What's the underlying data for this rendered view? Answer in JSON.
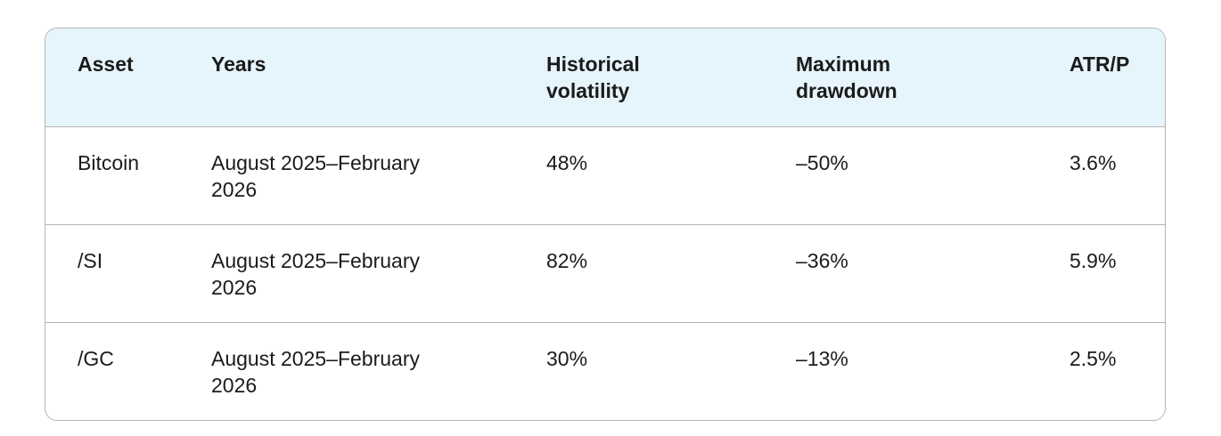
{
  "table": {
    "header": [
      "Asset",
      "Years",
      "Historical volatility",
      "Maximum drawdown",
      "ATR/P"
    ],
    "rows": [
      [
        "Bitcoin",
        "August 2025–February 2026",
        "48%",
        "–50%",
        "3.6%"
      ],
      [
        "/SI",
        "August 2025–February 2026",
        "82%",
        "–36%",
        "5.9%"
      ],
      [
        "/GC",
        "August 2025–February 2026",
        "30%",
        "–13%",
        "2.5%"
      ]
    ]
  }
}
